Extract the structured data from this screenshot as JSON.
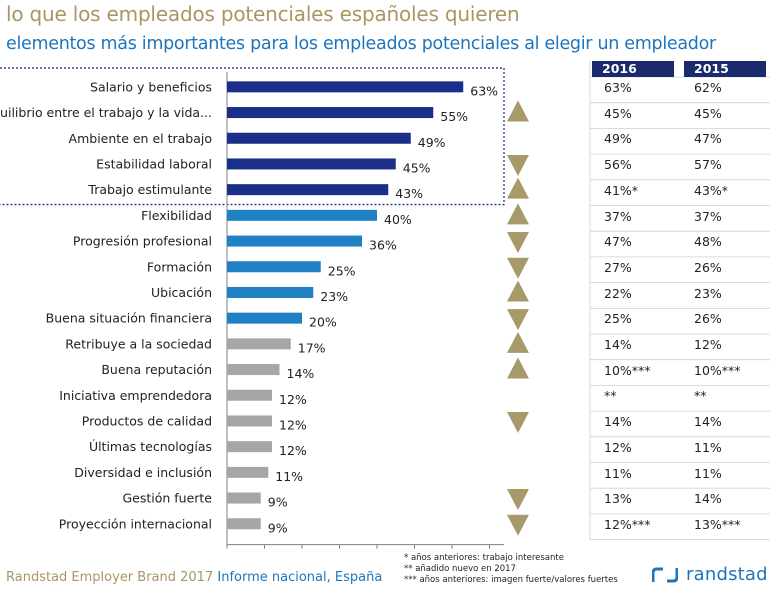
{
  "header": {
    "title": "lo que los empleados potenciales españoles quieren",
    "subtitle": "elementos más importantes para los empleados potenciales al elegir un empleador"
  },
  "chart_data": {
    "type": "bar",
    "orientation": "horizontal",
    "categories": [
      "Salario y beneficios",
      "Equilibrio entre el trabajo y la vida...",
      "Ambiente en el trabajo",
      "Estabilidad laboral",
      "Trabajo estimulante",
      "Flexibilidad",
      "Progresión profesional",
      "Formación",
      "Ubicación",
      "Buena situación financiera",
      "Retribuye a la sociedad",
      "Buena reputación",
      "Iniciativa emprendedora",
      "Productos de calidad",
      "Últimas tecnologías",
      "Diversidad e inclusión",
      "Gestión fuerte",
      "Proyección internacional"
    ],
    "values": [
      63,
      55,
      49,
      45,
      43,
      40,
      36,
      25,
      23,
      20,
      17,
      14,
      12,
      12,
      12,
      11,
      9,
      9
    ],
    "value_labels": [
      "63%",
      "55%",
      "49%",
      "45%",
      "43%",
      "40%",
      "36%",
      "25%",
      "23%",
      "20%",
      "17%",
      "14%",
      "12%",
      "12%",
      "12%",
      "11%",
      "9%",
      "9%"
    ],
    "bar_colors": [
      "#1a2f8a",
      "#1a2f8a",
      "#1a2f8a",
      "#1a2f8a",
      "#1a2f8a",
      "#1f80c4",
      "#1f80c4",
      "#1f80c4",
      "#1f80c4",
      "#1f80c4",
      "#a6a6a6",
      "#a6a6a6",
      "#a6a6a6",
      "#a6a6a6",
      "#a6a6a6",
      "#a6a6a6",
      "#a6a6a6",
      "#a6a6a6"
    ],
    "trend": [
      "none",
      "up",
      "none",
      "down",
      "up",
      "up",
      "down",
      "down",
      "up",
      "down",
      "up",
      "up",
      "none",
      "down",
      "none",
      "none",
      "down",
      "down"
    ],
    "trend_color": "#a8996b",
    "xlim": [
      0,
      70
    ],
    "grid": false,
    "table": {
      "columns": [
        "2016",
        "2015"
      ],
      "rows": [
        [
          "63%",
          "62%"
        ],
        [
          "45%",
          "45%"
        ],
        [
          "49%",
          "47%"
        ],
        [
          "56%",
          "57%"
        ],
        [
          "41%*",
          "43%*"
        ],
        [
          "37%",
          "37%"
        ],
        [
          "47%",
          "48%"
        ],
        [
          "27%",
          "26%"
        ],
        [
          "22%",
          "23%"
        ],
        [
          "25%",
          "26%"
        ],
        [
          "14%",
          "12%"
        ],
        [
          "10%***",
          "10%***"
        ],
        [
          "**",
          "**"
        ],
        [
          "14%",
          "14%"
        ],
        [
          "12%",
          "11%"
        ],
        [
          "11%",
          "11%"
        ],
        [
          "13%",
          "14%"
        ],
        [
          "12%***",
          "13%***"
        ]
      ]
    }
  },
  "footer": {
    "brand": "Randstad Employer Brand 2017",
    "report": "Informe nacional, España",
    "notes": [
      "* años anteriores: trabajo interesante",
      "** añadido nuevo en 2017",
      "*** años anteriores: imagen fuerte/valores fuertes"
    ],
    "logo_text": "randstad"
  },
  "colors": {
    "gold": "#a99663",
    "blue": "#1f75bb",
    "navy": "#1a2a6c"
  }
}
